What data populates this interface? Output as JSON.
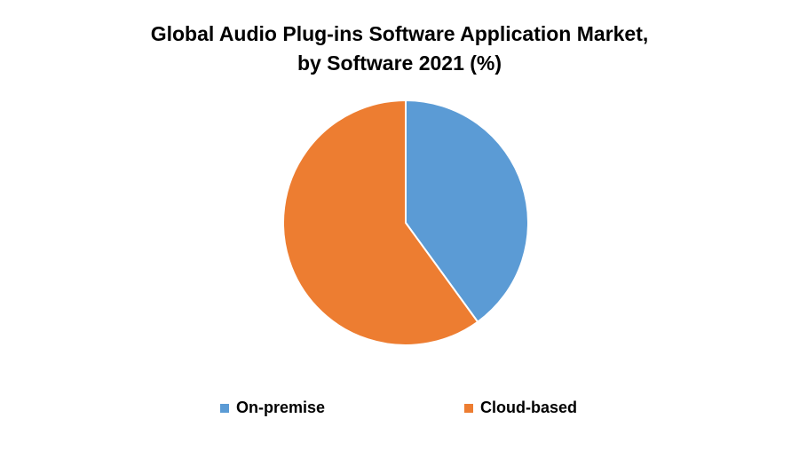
{
  "chart_data": {
    "type": "pie",
    "title_line1": "Global Audio Plug-ins Software Application Market,",
    "title_line2": "by Software 2021 (%)",
    "legend_position": "bottom",
    "slices": [
      {
        "name": "On-premise",
        "value": 40,
        "color": "#5B9BD5"
      },
      {
        "name": "Cloud-based",
        "value": 60,
        "color": "#ED7D31"
      }
    ]
  }
}
